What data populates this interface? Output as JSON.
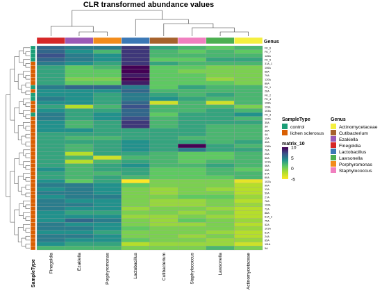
{
  "chart_data": {
    "type": "heatmap",
    "title": "CLR transformed abundance values",
    "columns": [
      "Finegoldia",
      "Ezakiella",
      "Porphyromonas",
      "Lactobacillus",
      "Cutibacterium",
      "Staphylococcus",
      "Lawsonella",
      "Actinomycetaceae"
    ],
    "column_annotation_title": "Genus",
    "row_annotation_title": "SampleType",
    "rows": [
      "FK_6",
      "FK_7",
      "126A",
      "FK_5",
      "31A_1",
      "106A",
      "68A",
      "79A",
      "120A",
      "86A",
      "FK_1",
      "26A",
      "FK_2",
      "FK_4",
      "108A",
      "119A",
      "103A",
      "FK_3",
      "122A",
      "35A",
      "3A",
      "38A",
      "4A",
      "15A",
      "40A",
      "136A",
      "70A",
      "20A",
      "50A",
      "121A",
      "46A",
      "11A",
      "57A",
      "60A",
      "102A",
      "90A",
      "13A",
      "59A",
      "27A",
      "76A",
      "110A",
      "72A",
      "88A",
      "61A_2",
      "75A",
      "52A",
      "101A",
      "51A",
      "24A",
      "65A",
      "111A",
      "5A"
    ],
    "sample_type": [
      "control",
      "control",
      "control",
      "control",
      "lichen sclerosus",
      "lichen sclerosus",
      "lichen sclerosus",
      "lichen sclerosus",
      "lichen sclerosus",
      "lichen sclerosus",
      "control",
      "lichen sclerosus",
      "control",
      "control",
      "lichen sclerosus",
      "lichen sclerosus",
      "lichen sclerosus",
      "control",
      "lichen sclerosus",
      "lichen sclerosus",
      "lichen sclerosus",
      "lichen sclerosus",
      "lichen sclerosus",
      "lichen sclerosus",
      "lichen sclerosus",
      "lichen sclerosus",
      "lichen sclerosus",
      "lichen sclerosus",
      "lichen sclerosus",
      "lichen sclerosus",
      "lichen sclerosus",
      "lichen sclerosus",
      "lichen sclerosus",
      "lichen sclerosus",
      "lichen sclerosus",
      "lichen sclerosus",
      "lichen sclerosus",
      "lichen sclerosus",
      "lichen sclerosus",
      "lichen sclerosus",
      "lichen sclerosus",
      "lichen sclerosus",
      "lichen sclerosus",
      "lichen sclerosus",
      "lichen sclerosus",
      "lichen sclerosus",
      "lichen sclerosus",
      "lichen sclerosus",
      "lichen sclerosus",
      "lichen sclerosus",
      "lichen sclerosus",
      "lichen sclerosus"
    ],
    "values": [
      [
        6,
        5,
        5,
        8,
        3,
        2,
        1,
        2
      ],
      [
        6,
        4,
        2,
        8,
        2,
        1,
        2,
        1
      ],
      [
        7,
        5,
        4,
        8,
        2,
        2,
        2,
        2
      ],
      [
        6,
        5,
        4,
        8,
        1,
        1,
        3,
        3
      ],
      [
        5,
        4,
        3,
        8,
        3,
        2,
        2,
        2
      ],
      [
        3,
        1,
        2,
        10,
        1,
        1,
        0,
        0
      ],
      [
        3,
        1,
        1,
        10,
        1,
        0,
        0,
        0
      ],
      [
        3,
        1,
        1,
        9,
        1,
        1,
        0,
        0
      ],
      [
        3,
        0,
        0,
        10,
        1,
        1,
        -1,
        0
      ],
      [
        3,
        1,
        1,
        9,
        1,
        1,
        1,
        0
      ],
      [
        5,
        6,
        6,
        5,
        1,
        3,
        2,
        2
      ],
      [
        4,
        4,
        4,
        6,
        2,
        2,
        2,
        2
      ],
      [
        4,
        4,
        3,
        5,
        3,
        2,
        3,
        2
      ],
      [
        5,
        4,
        3,
        5,
        4,
        3,
        2,
        2
      ],
      [
        4,
        4,
        3,
        6,
        -3,
        2,
        -3,
        2
      ],
      [
        3,
        -2,
        2,
        7,
        2,
        2,
        2,
        0
      ],
      [
        4,
        3,
        3,
        6,
        2,
        2,
        3,
        2
      ],
      [
        5,
        3,
        4,
        6,
        1,
        3,
        3,
        4
      ],
      [
        5,
        3,
        4,
        7,
        2,
        3,
        3,
        2
      ],
      [
        4,
        2,
        3,
        8,
        2,
        3,
        3,
        3
      ],
      [
        4,
        2,
        3,
        8,
        2,
        3,
        2,
        2
      ],
      [
        4,
        4,
        3,
        3,
        3,
        3,
        2,
        2
      ],
      [
        3,
        3,
        3,
        3,
        3,
        3,
        2,
        2
      ],
      [
        3,
        2,
        2,
        3,
        3,
        2,
        2,
        2
      ],
      [
        3,
        3,
        3,
        4,
        3,
        3,
        2,
        3
      ],
      [
        3,
        2,
        3,
        4,
        3,
        10,
        3,
        2
      ],
      [
        3,
        2,
        3,
        4,
        3,
        5,
        3,
        3
      ],
      [
        3,
        -2,
        3,
        3,
        2,
        1,
        1,
        2
      ],
      [
        3,
        2,
        -3,
        2,
        2,
        1,
        1,
        2
      ],
      [
        3,
        -2,
        2,
        3,
        2,
        1,
        2,
        2
      ],
      [
        3,
        2,
        3,
        4,
        2,
        2,
        3,
        2
      ],
      [
        4,
        2,
        3,
        3,
        1,
        1,
        2,
        1
      ],
      [
        3,
        2,
        2,
        3,
        1,
        1,
        2,
        2
      ],
      [
        3,
        2,
        3,
        2,
        1,
        1,
        1,
        2
      ],
      [
        4,
        1,
        3,
        -5,
        0,
        0,
        0,
        -4
      ],
      [
        5,
        5,
        4,
        1,
        0,
        0,
        0,
        -2
      ],
      [
        4,
        5,
        4,
        0,
        -1,
        0,
        -1,
        -2
      ],
      [
        5,
        5,
        4,
        0,
        -1,
        0,
        0,
        -2
      ],
      [
        4,
        5,
        5,
        0,
        0,
        1,
        1,
        -1
      ],
      [
        5,
        4,
        4,
        0,
        -1,
        -1,
        0,
        -2
      ],
      [
        5,
        5,
        4,
        0,
        -1,
        -1,
        0,
        -1
      ],
      [
        5,
        4,
        4,
        -1,
        0,
        0,
        -1,
        -2
      ],
      [
        4,
        3,
        3,
        0,
        0,
        -1,
        0,
        -2
      ],
      [
        4,
        4,
        4,
        -1,
        -1,
        0,
        -1,
        -2
      ],
      [
        4,
        6,
        5,
        0,
        -1,
        1,
        0,
        -1
      ],
      [
        5,
        4,
        4,
        0,
        -1,
        -1,
        0,
        -2
      ],
      [
        5,
        5,
        4,
        1,
        0,
        0,
        0,
        -1
      ],
      [
        4,
        4,
        3,
        0,
        0,
        0,
        -1,
        -2
      ],
      [
        5,
        5,
        4,
        0,
        0,
        -1,
        0,
        -2
      ],
      [
        5,
        4,
        4,
        1,
        0,
        0,
        -1,
        -1
      ],
      [
        4,
        3,
        3,
        -2,
        -1,
        -1,
        -1,
        -3
      ],
      [
        2,
        2,
        2,
        0,
        0,
        0,
        2,
        0
      ]
    ],
    "color_scale": {
      "title": "matrix_10",
      "ticks": [
        10,
        5,
        0,
        -5
      ]
    },
    "legend_placement": "right"
  },
  "genus_legend": {
    "title": "Genus",
    "items": [
      {
        "label": "Actinomycetaceae",
        "color": "#f4ef3f"
      },
      {
        "label": "Cutibacterium",
        "color": "#a6622d"
      },
      {
        "label": "Ezakiella",
        "color": "#9b59b6"
      },
      {
        "label": "Finegoldia",
        "color": "#d62728"
      },
      {
        "label": "Lactobacillus",
        "color": "#3b78b5"
      },
      {
        "label": "Lawsonella",
        "color": "#4caf50"
      },
      {
        "label": "Porphyromonas",
        "color": "#f28c1c"
      },
      {
        "label": "Staphylococcus",
        "color": "#f07fbf"
      }
    ]
  },
  "sample_legend": {
    "title": "SampleType",
    "items": [
      {
        "label": "control",
        "color": "#1b9e77"
      },
      {
        "label": "lichen sclerosus",
        "color": "#d95f02"
      }
    ]
  }
}
